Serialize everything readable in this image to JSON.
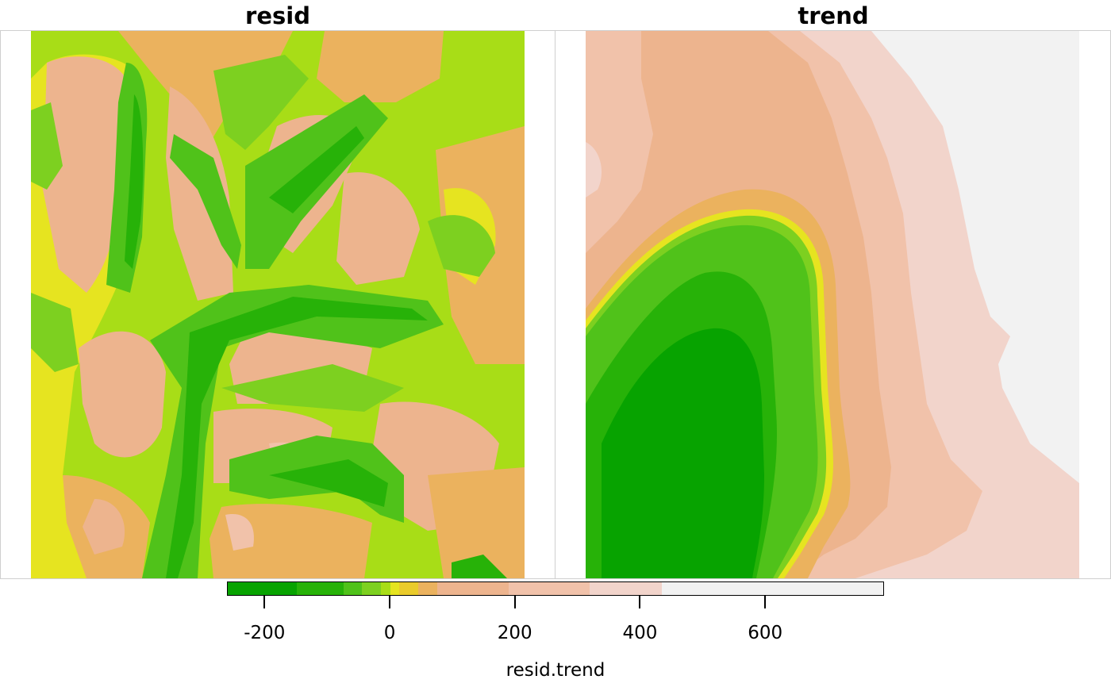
{
  "panels": [
    {
      "title": "resid"
    },
    {
      "title": "trend"
    }
  ],
  "legend": {
    "title": "resid.trend",
    "ticks": [
      "-200",
      "0",
      "200",
      "400",
      "600"
    ],
    "tick_values": [
      -200,
      0,
      200,
      400,
      600
    ],
    "range": [
      -260,
      790
    ],
    "breaks": [
      -260,
      -150,
      -75,
      -45,
      -15,
      0,
      15,
      45,
      75,
      190,
      320,
      435,
      600,
      790
    ],
    "colors": [
      "#07A300",
      "#27B208",
      "#50C21A",
      "#7DD020",
      "#A8DD17",
      "#E6E420",
      "#EACB2B",
      "#EBB25E",
      "#EDB48E",
      "#F1C2AA",
      "#F2D4CB",
      "#F2F2F2",
      "#F2F2F2"
    ]
  }
}
